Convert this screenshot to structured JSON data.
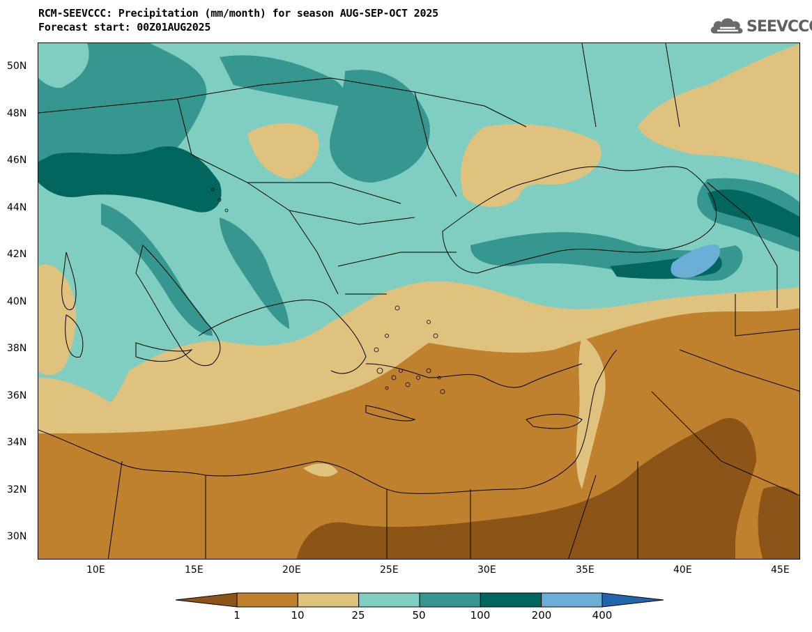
{
  "header": {
    "title": "RCM-SEEVCCC: Precipitation (mm/month) for season AUG-SEP-OCT 2025",
    "subtitle": "Forecast start: 00Z01AUG2025"
  },
  "logo": {
    "text": "SEEVCCC",
    "icon": "cloud-icon"
  },
  "map": {
    "type": "contour-filled precipitation forecast map",
    "lon_range": [
      7,
      46
    ],
    "lat_range": [
      29,
      51
    ],
    "lat_labels": [
      "50N",
      "48N",
      "46N",
      "44N",
      "42N",
      "40N",
      "38N",
      "36N",
      "34N",
      "32N",
      "30N"
    ],
    "lon_labels": [
      "10E",
      "15E",
      "20E",
      "25E",
      "30E",
      "35E",
      "40E",
      "45E"
    ]
  },
  "colorbar": {
    "levels": [
      "1",
      "10",
      "25",
      "50",
      "100",
      "200",
      "400"
    ],
    "colors": [
      "#8c5416",
      "#bf812d",
      "#dfc27d",
      "#80cdc1",
      "#35978f",
      "#01665e",
      "#6baed6",
      "#2166ac"
    ]
  }
}
